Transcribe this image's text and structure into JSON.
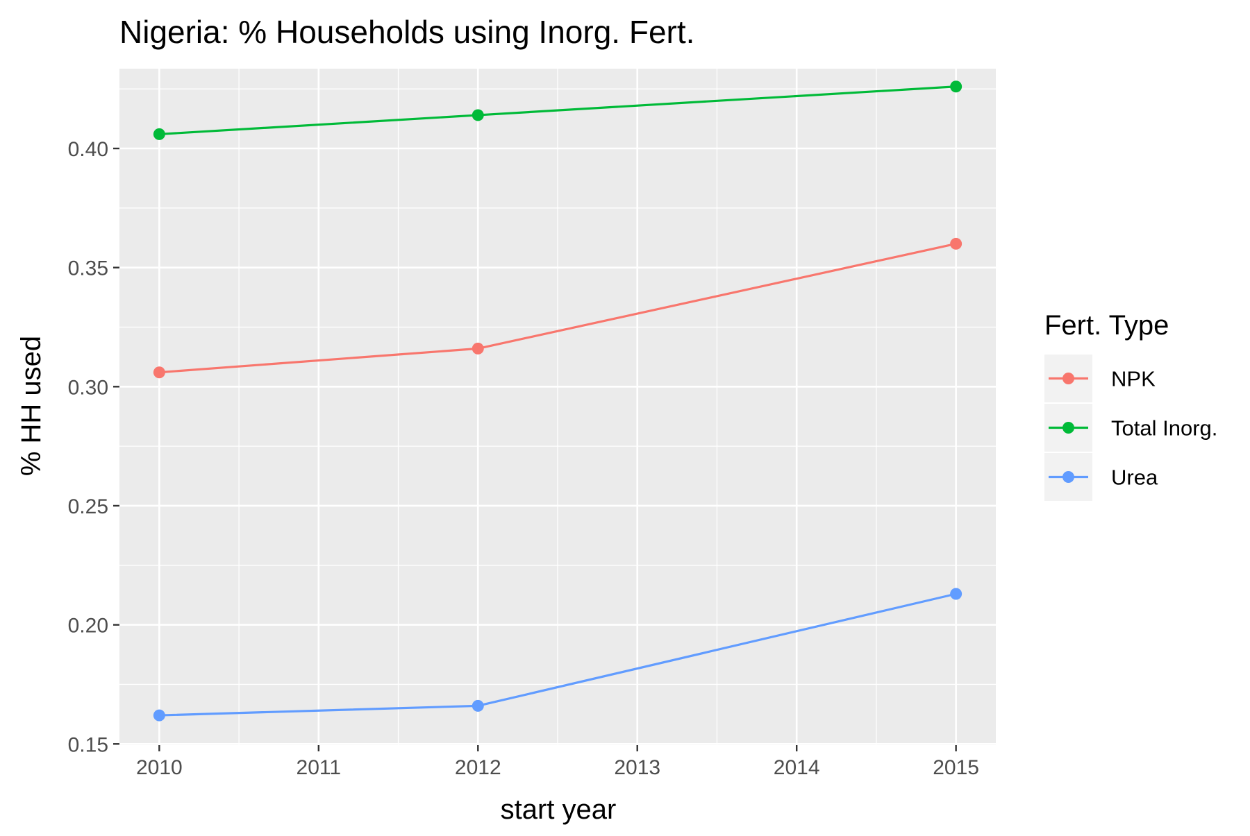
{
  "chart_data": {
    "type": "line",
    "title": "Nigeria: % Households using Inorg. Fert.",
    "xlabel": "start year",
    "ylabel": "% HH used",
    "xlim": [
      2009.75,
      2015.25
    ],
    "ylim": [
      0.1495,
      0.4335
    ],
    "x_ticks": [
      2010,
      2011,
      2012,
      2013,
      2014,
      2015
    ],
    "x_tick_labels": [
      "2010",
      "2011",
      "2012",
      "2013",
      "2014",
      "2015"
    ],
    "y_ticks": [
      0.15,
      0.2,
      0.25,
      0.3,
      0.35,
      0.4
    ],
    "y_tick_labels": [
      "0.15",
      "0.20",
      "0.25",
      "0.30",
      "0.35",
      "0.40"
    ],
    "grid": true,
    "legend": {
      "title": "Fert. Type",
      "position": "right"
    },
    "series": [
      {
        "name": "NPK",
        "color": "#F8766D",
        "x": [
          2010,
          2012,
          2015
        ],
        "y": [
          0.306,
          0.316,
          0.36
        ]
      },
      {
        "name": "Total Inorg.",
        "color": "#00BA38",
        "x": [
          2010,
          2012,
          2015
        ],
        "y": [
          0.406,
          0.414,
          0.426
        ]
      },
      {
        "name": "Urea",
        "color": "#619CFF",
        "x": [
          2010,
          2012,
          2015
        ],
        "y": [
          0.162,
          0.166,
          0.213
        ]
      }
    ],
    "panel_background": "#EBEBEB",
    "grid_color": "#FFFFFF"
  }
}
